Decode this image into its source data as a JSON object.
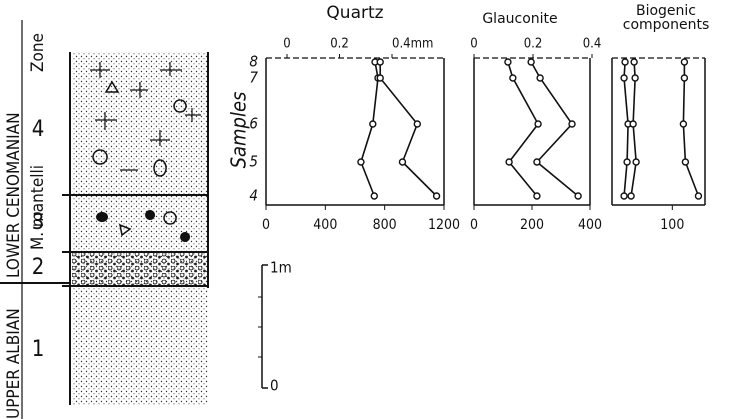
{
  "chart_data": [
    {
      "type": "line",
      "title": "Quartz",
      "categories": [
        "8",
        "7",
        "6",
        "5",
        "4"
      ],
      "xlim": [
        0,
        1200
      ],
      "xticks": [
        0,
        400,
        800,
        1200
      ],
      "x2lim": [
        0,
        0.4
      ],
      "x2ticks": [
        0,
        0.2,
        {
          "value": 0.4,
          "label": "0.4mm"
        }
      ],
      "series": [
        {
          "color": "#111111",
          "values": [
            735,
            755,
            720,
            640,
            730
          ]
        },
        {
          "color": "#111111",
          "values": [
            770,
            770,
            1020,
            920,
            1150
          ]
        }
      ]
    },
    {
      "type": "line",
      "title": "Glauconite",
      "categories": [
        "8",
        "7",
        "6",
        "5",
        "4"
      ],
      "xlim": [
        0,
        400
      ],
      "xticks": [
        0,
        200,
        400
      ],
      "x2lim": [
        0,
        0.4
      ],
      "x2ticks": [
        0,
        0.2,
        0.4
      ],
      "series": [
        {
          "color": "#111111",
          "values": [
            117,
            134,
            221,
            121,
            217
          ]
        },
        {
          "color": "#111111",
          "values": [
            197,
            228,
            338,
            217,
            359
          ]
        }
      ]
    },
    {
      "type": "line",
      "title": "Biogenic components",
      "categories": [
        "8",
        "7",
        "6",
        "5",
        "4"
      ],
      "xlim": [
        -20,
        165
      ],
      "xticks": [
        100
      ],
      "series": [
        {
          "color": "#111111",
          "values": [
            6,
            4,
            12,
            10,
            4
          ]
        },
        {
          "color": "#111111",
          "values": [
            24,
            26,
            22,
            28,
            18
          ]
        },
        {
          "color": "#111111",
          "values": [
            124,
            124,
            122,
            126,
            152
          ]
        }
      ]
    }
  ],
  "section": {
    "y_label": "Samples",
    "stage_upper": "UPPER ALBIAN",
    "stage_lower": "LOWER CENOMANIAN",
    "zone_name": "M. mantelli",
    "zone_word": "Zone",
    "beds": [
      "4",
      "3",
      "2",
      "1"
    ],
    "scale_top": "1m",
    "scale_bottom": "0"
  }
}
